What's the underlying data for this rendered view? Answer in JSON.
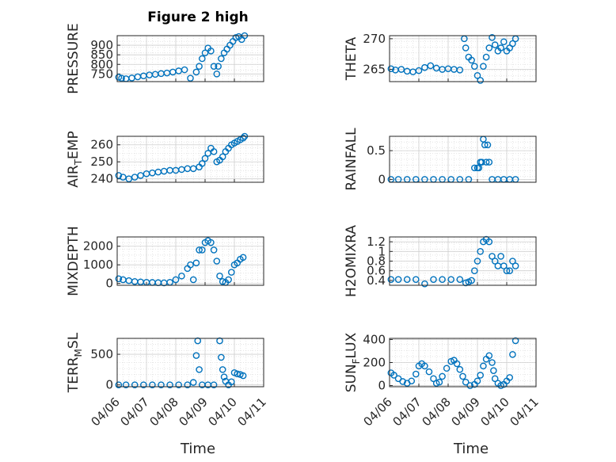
{
  "figure_title": "Figure 2 high",
  "colors": {
    "marker": "#0072BD",
    "axes": "#262626",
    "grid": "#dcdcdc"
  },
  "chart_data": [
    {
      "type": "scatter",
      "ylabel": "PRESSURE",
      "ylim": [
        710,
        950
      ],
      "yticks": [
        750,
        800,
        850,
        900
      ],
      "xlim": [
        0,
        5
      ],
      "series": [
        {
          "x": [
            0.05,
            0.15,
            0.3,
            0.5,
            0.7,
            0.9,
            1.1,
            1.3,
            1.5,
            1.7,
            1.9,
            2.1,
            2.3,
            2.5,
            2.7,
            2.8,
            2.9,
            3.0,
            3.1,
            3.2,
            3.3,
            3.4,
            3.45,
            3.55,
            3.65,
            3.75,
            3.85,
            3.95,
            4.05,
            4.15,
            4.25,
            4.35
          ],
          "y": [
            733,
            728,
            725,
            729,
            735,
            740,
            745,
            748,
            752,
            755,
            760,
            766,
            772,
            728,
            760,
            790,
            830,
            860,
            885,
            870,
            790,
            750,
            790,
            830,
            860,
            880,
            900,
            920,
            940,
            945,
            930,
            950
          ]
        }
      ]
    },
    {
      "type": "scatter",
      "ylabel": "THETA",
      "ylim": [
        263,
        270.5
      ],
      "yticks": [
        265,
        270
      ],
      "xlim": [
        0,
        5
      ],
      "series": [
        {
          "x": [
            0.05,
            0.2,
            0.4,
            0.6,
            0.8,
            1.0,
            1.2,
            1.4,
            1.6,
            1.8,
            2.0,
            2.2,
            2.4,
            2.55,
            2.6,
            2.7,
            2.8,
            2.9,
            3.0,
            3.1,
            3.2,
            3.3,
            3.4,
            3.5,
            3.6,
            3.7,
            3.8,
            3.9,
            4.0,
            4.1,
            4.2,
            4.3
          ],
          "y": [
            265.1,
            264.9,
            265.0,
            264.7,
            264.6,
            264.8,
            265.3,
            265.6,
            265.2,
            265.0,
            265.1,
            265.0,
            264.9,
            270.0,
            268.5,
            267.0,
            266.5,
            265.5,
            264.0,
            263.2,
            265.5,
            267.0,
            268.5,
            270.2,
            269.0,
            268.0,
            268.5,
            269.5,
            268.0,
            268.5,
            269.2,
            270.0
          ]
        }
      ]
    },
    {
      "type": "scatter",
      "ylabel": "AIR_TEMP",
      "ylim": [
        238,
        265
      ],
      "yticks": [
        240,
        250,
        260
      ],
      "xlim": [
        0,
        5
      ],
      "series": [
        {
          "x": [
            0.05,
            0.2,
            0.4,
            0.6,
            0.8,
            1.0,
            1.2,
            1.4,
            1.6,
            1.8,
            2.0,
            2.2,
            2.4,
            2.6,
            2.8,
            2.9,
            3.0,
            3.1,
            3.2,
            3.3,
            3.4,
            3.5,
            3.6,
            3.7,
            3.8,
            3.9,
            4.0,
            4.1,
            4.2,
            4.3,
            4.35
          ],
          "y": [
            242,
            241,
            240,
            241,
            242,
            243,
            243.5,
            244,
            244.5,
            245,
            245,
            245.5,
            246,
            246,
            247,
            249,
            252,
            255,
            258,
            256,
            250,
            251,
            253,
            256,
            258,
            260,
            261,
            262,
            263,
            264,
            265
          ]
        }
      ]
    },
    {
      "type": "scatter",
      "ylabel": "RAINFALL",
      "ylim": [
        -0.05,
        0.75
      ],
      "yticks": [
        0,
        0.5
      ],
      "xlim": [
        0,
        5
      ],
      "series": [
        {
          "x": [
            0.05,
            0.3,
            0.6,
            0.9,
            1.2,
            1.5,
            1.8,
            2.1,
            2.4,
            2.7,
            2.9,
            3.0,
            3.05,
            3.1,
            3.15,
            3.2,
            3.25,
            3.3,
            3.35,
            3.4,
            3.5,
            3.7,
            3.9,
            4.1,
            4.3
          ],
          "y": [
            0,
            0,
            0,
            0,
            0,
            0,
            0,
            0,
            0,
            0,
            0.2,
            0.2,
            0.2,
            0.3,
            0.3,
            0.7,
            0.6,
            0.3,
            0.6,
            0.3,
            0,
            0,
            0,
            0,
            0
          ]
        }
      ]
    },
    {
      "type": "scatter",
      "ylabel": "MIXDEPTH",
      "ylim": [
        -100,
        2500
      ],
      "yticks": [
        0,
        1000,
        2000
      ],
      "xlim": [
        0,
        5
      ],
      "series": [
        {
          "x": [
            0.05,
            0.2,
            0.4,
            0.6,
            0.8,
            1.0,
            1.2,
            1.4,
            1.6,
            1.8,
            2.0,
            2.2,
            2.4,
            2.5,
            2.6,
            2.7,
            2.8,
            2.9,
            3.0,
            3.1,
            3.2,
            3.3,
            3.4,
            3.5,
            3.6,
            3.7,
            3.8,
            3.9,
            4.0,
            4.1,
            4.2,
            4.3
          ],
          "y": [
            250,
            200,
            150,
            100,
            80,
            60,
            50,
            40,
            30,
            60,
            200,
            400,
            800,
            1000,
            200,
            1100,
            1800,
            1800,
            2200,
            2300,
            2200,
            1800,
            1200,
            400,
            100,
            50,
            200,
            600,
            1000,
            1100,
            1300,
            1400
          ]
        }
      ]
    },
    {
      "type": "scatter",
      "ylabel": "H2OMIXRA",
      "ylim": [
        0.3,
        1.3
      ],
      "yticks": [
        0.4,
        0.6,
        0.8,
        1,
        1.2
      ],
      "xlim": [
        0,
        5
      ],
      "series": [
        {
          "x": [
            0.05,
            0.3,
            0.6,
            0.9,
            1.2,
            1.5,
            1.8,
            2.1,
            2.4,
            2.6,
            2.7,
            2.8,
            2.9,
            3.0,
            3.1,
            3.2,
            3.3,
            3.4,
            3.5,
            3.6,
            3.7,
            3.8,
            3.9,
            4.0,
            4.1,
            4.2,
            4.3
          ],
          "y": [
            0.42,
            0.42,
            0.42,
            0.42,
            0.33,
            0.42,
            0.42,
            0.42,
            0.42,
            0.35,
            0.37,
            0.4,
            0.6,
            0.8,
            1.0,
            1.2,
            1.25,
            1.2,
            0.9,
            0.8,
            0.7,
            0.9,
            0.7,
            0.6,
            0.6,
            0.8,
            0.7
          ]
        }
      ]
    },
    {
      "type": "scatter",
      "ylabel": "TERR_MSL",
      "ylim": [
        -30,
        760
      ],
      "yticks": [
        0,
        500
      ],
      "xlim": [
        0,
        5
      ],
      "series": [
        {
          "x": [
            0.05,
            0.3,
            0.6,
            0.9,
            1.2,
            1.5,
            1.8,
            2.1,
            2.4,
            2.6,
            2.7,
            2.75,
            2.8,
            2.9,
            3.1,
            3.3,
            3.5,
            3.55,
            3.6,
            3.65,
            3.7,
            3.8,
            3.9,
            4.0,
            4.1,
            4.2,
            4.3
          ],
          "y": [
            0,
            0,
            0,
            0,
            0,
            0,
            0,
            0,
            0,
            40,
            480,
            720,
            250,
            0,
            0,
            0,
            720,
            450,
            250,
            130,
            60,
            0,
            50,
            200,
            180,
            170,
            150
          ]
        }
      ]
    },
    {
      "type": "scatter",
      "ylabel": "SUN_FLUX",
      "ylim": [
        -10,
        410
      ],
      "yticks": [
        0,
        200,
        400
      ],
      "xlim": [
        0,
        5
      ],
      "series": [
        {
          "x": [
            0.05,
            0.15,
            0.3,
            0.45,
            0.6,
            0.75,
            0.9,
            1.0,
            1.1,
            1.2,
            1.35,
            1.5,
            1.6,
            1.7,
            1.8,
            1.95,
            2.1,
            2.2,
            2.3,
            2.4,
            2.5,
            2.6,
            2.75,
            2.9,
            3.0,
            3.1,
            3.2,
            3.3,
            3.4,
            3.5,
            3.55,
            3.6,
            3.7,
            3.8,
            3.9,
            4.0,
            4.1,
            4.2,
            4.3
          ],
          "y": [
            110,
            90,
            60,
            35,
            20,
            40,
            100,
            170,
            190,
            170,
            120,
            60,
            20,
            30,
            80,
            150,
            210,
            220,
            190,
            140,
            80,
            30,
            0,
            10,
            40,
            90,
            170,
            230,
            260,
            200,
            130,
            60,
            20,
            0,
            10,
            40,
            70,
            270,
            390
          ]
        }
      ]
    }
  ],
  "xticks": [
    "04/06",
    "04/07",
    "04/08",
    "04/09",
    "04/10",
    "04/11"
  ],
  "xlabel": "Time"
}
